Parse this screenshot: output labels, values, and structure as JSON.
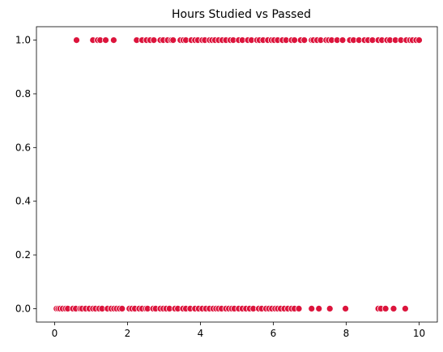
{
  "chart_data": {
    "type": "scatter",
    "title": "Hours Studied vs Passed",
    "xlabel": "",
    "ylabel": "",
    "xlim": [
      -0.5,
      10.5
    ],
    "ylim": [
      -0.05,
      1.05
    ],
    "x_ticks": [
      0,
      2,
      4,
      6,
      8,
      10
    ],
    "x_tick_labels": [
      "0",
      "2",
      "4",
      "6",
      "8",
      "10"
    ],
    "y_ticks": [
      0.0,
      0.2,
      0.4,
      0.6,
      0.8,
      1.0
    ],
    "y_tick_labels": [
      "0.0",
      "0.2",
      "0.4",
      "0.6",
      "0.8",
      "1.0"
    ],
    "grid": false,
    "color": "#dc143c",
    "points": [
      {
        "x": 0.05,
        "y": 0
      },
      {
        "x": 0.1,
        "y": 0
      },
      {
        "x": 0.15,
        "y": 0
      },
      {
        "x": 0.22,
        "y": 0
      },
      {
        "x": 0.3,
        "y": 0
      },
      {
        "x": 0.36,
        "y": 0
      },
      {
        "x": 0.5,
        "y": 0
      },
      {
        "x": 0.58,
        "y": 0
      },
      {
        "x": 0.7,
        "y": 0
      },
      {
        "x": 0.75,
        "y": 0
      },
      {
        "x": 0.85,
        "y": 0
      },
      {
        "x": 0.95,
        "y": 0
      },
      {
        "x": 1.05,
        "y": 0
      },
      {
        "x": 1.12,
        "y": 0
      },
      {
        "x": 1.22,
        "y": 0
      },
      {
        "x": 1.3,
        "y": 0
      },
      {
        "x": 1.45,
        "y": 0
      },
      {
        "x": 1.55,
        "y": 0
      },
      {
        "x": 1.63,
        "y": 0
      },
      {
        "x": 1.7,
        "y": 0
      },
      {
        "x": 1.78,
        "y": 0
      },
      {
        "x": 1.85,
        "y": 0
      },
      {
        "x": 2.05,
        "y": 0
      },
      {
        "x": 2.12,
        "y": 0
      },
      {
        "x": 2.2,
        "y": 0
      },
      {
        "x": 2.32,
        "y": 0
      },
      {
        "x": 2.4,
        "y": 0
      },
      {
        "x": 2.5,
        "y": 0
      },
      {
        "x": 2.55,
        "y": 0
      },
      {
        "x": 2.7,
        "y": 0
      },
      {
        "x": 2.77,
        "y": 0
      },
      {
        "x": 2.9,
        "y": 0
      },
      {
        "x": 2.98,
        "y": 0
      },
      {
        "x": 3.06,
        "y": 0
      },
      {
        "x": 3.15,
        "y": 0
      },
      {
        "x": 3.3,
        "y": 0
      },
      {
        "x": 3.38,
        "y": 0
      },
      {
        "x": 3.52,
        "y": 0
      },
      {
        "x": 3.6,
        "y": 0
      },
      {
        "x": 3.72,
        "y": 0
      },
      {
        "x": 3.85,
        "y": 0
      },
      {
        "x": 3.95,
        "y": 0
      },
      {
        "x": 4.05,
        "y": 0
      },
      {
        "x": 4.15,
        "y": 0
      },
      {
        "x": 4.25,
        "y": 0
      },
      {
        "x": 4.35,
        "y": 0
      },
      {
        "x": 4.43,
        "y": 0
      },
      {
        "x": 4.5,
        "y": 0
      },
      {
        "x": 4.58,
        "y": 0
      },
      {
        "x": 4.7,
        "y": 0
      },
      {
        "x": 4.78,
        "y": 0
      },
      {
        "x": 4.86,
        "y": 0
      },
      {
        "x": 4.93,
        "y": 0
      },
      {
        "x": 5.05,
        "y": 0
      },
      {
        "x": 5.15,
        "y": 0
      },
      {
        "x": 5.25,
        "y": 0
      },
      {
        "x": 5.35,
        "y": 0
      },
      {
        "x": 5.45,
        "y": 0
      },
      {
        "x": 5.6,
        "y": 0
      },
      {
        "x": 5.68,
        "y": 0
      },
      {
        "x": 5.8,
        "y": 0
      },
      {
        "x": 5.88,
        "y": 0
      },
      {
        "x": 5.96,
        "y": 0
      },
      {
        "x": 6.05,
        "y": 0
      },
      {
        "x": 6.12,
        "y": 0
      },
      {
        "x": 6.2,
        "y": 0
      },
      {
        "x": 6.3,
        "y": 0
      },
      {
        "x": 6.4,
        "y": 0
      },
      {
        "x": 6.5,
        "y": 0
      },
      {
        "x": 6.58,
        "y": 0
      },
      {
        "x": 6.7,
        "y": 0
      },
      {
        "x": 7.05,
        "y": 0
      },
      {
        "x": 7.25,
        "y": 0
      },
      {
        "x": 7.55,
        "y": 0
      },
      {
        "x": 7.98,
        "y": 0
      },
      {
        "x": 8.88,
        "y": 0
      },
      {
        "x": 8.95,
        "y": 0
      },
      {
        "x": 9.08,
        "y": 0
      },
      {
        "x": 9.3,
        "y": 0
      },
      {
        "x": 9.62,
        "y": 0
      },
      {
        "x": 0.6,
        "y": 1
      },
      {
        "x": 1.05,
        "y": 1
      },
      {
        "x": 1.18,
        "y": 1
      },
      {
        "x": 1.25,
        "y": 1
      },
      {
        "x": 1.4,
        "y": 1
      },
      {
        "x": 1.62,
        "y": 1
      },
      {
        "x": 2.25,
        "y": 1
      },
      {
        "x": 2.4,
        "y": 1
      },
      {
        "x": 2.52,
        "y": 1
      },
      {
        "x": 2.62,
        "y": 1
      },
      {
        "x": 2.72,
        "y": 1
      },
      {
        "x": 2.9,
        "y": 1
      },
      {
        "x": 2.98,
        "y": 1
      },
      {
        "x": 3.1,
        "y": 1
      },
      {
        "x": 3.2,
        "y": 1
      },
      {
        "x": 3.25,
        "y": 1
      },
      {
        "x": 3.45,
        "y": 1
      },
      {
        "x": 3.53,
        "y": 1
      },
      {
        "x": 3.6,
        "y": 1
      },
      {
        "x": 3.75,
        "y": 1
      },
      {
        "x": 3.85,
        "y": 1
      },
      {
        "x": 3.93,
        "y": 1
      },
      {
        "x": 4.05,
        "y": 1
      },
      {
        "x": 4.12,
        "y": 1
      },
      {
        "x": 4.25,
        "y": 1
      },
      {
        "x": 4.32,
        "y": 1
      },
      {
        "x": 4.4,
        "y": 1
      },
      {
        "x": 4.5,
        "y": 1
      },
      {
        "x": 4.6,
        "y": 1
      },
      {
        "x": 4.7,
        "y": 1
      },
      {
        "x": 4.82,
        "y": 1
      },
      {
        "x": 4.9,
        "y": 1
      },
      {
        "x": 5.05,
        "y": 1
      },
      {
        "x": 5.15,
        "y": 1
      },
      {
        "x": 5.3,
        "y": 1
      },
      {
        "x": 5.4,
        "y": 1
      },
      {
        "x": 5.55,
        "y": 1
      },
      {
        "x": 5.62,
        "y": 1
      },
      {
        "x": 5.72,
        "y": 1
      },
      {
        "x": 5.85,
        "y": 1
      },
      {
        "x": 5.95,
        "y": 1
      },
      {
        "x": 6.02,
        "y": 1
      },
      {
        "x": 6.12,
        "y": 1
      },
      {
        "x": 6.25,
        "y": 1
      },
      {
        "x": 6.35,
        "y": 1
      },
      {
        "x": 6.5,
        "y": 1
      },
      {
        "x": 6.58,
        "y": 1
      },
      {
        "x": 6.75,
        "y": 1
      },
      {
        "x": 6.85,
        "y": 1
      },
      {
        "x": 7.05,
        "y": 1
      },
      {
        "x": 7.1,
        "y": 1
      },
      {
        "x": 7.2,
        "y": 1
      },
      {
        "x": 7.3,
        "y": 1
      },
      {
        "x": 7.45,
        "y": 1
      },
      {
        "x": 7.52,
        "y": 1
      },
      {
        "x": 7.6,
        "y": 1
      },
      {
        "x": 7.75,
        "y": 1
      },
      {
        "x": 7.9,
        "y": 1
      },
      {
        "x": 8.1,
        "y": 1
      },
      {
        "x": 8.2,
        "y": 1
      },
      {
        "x": 8.35,
        "y": 1
      },
      {
        "x": 8.5,
        "y": 1
      },
      {
        "x": 8.6,
        "y": 1
      },
      {
        "x": 8.72,
        "y": 1
      },
      {
        "x": 8.88,
        "y": 1
      },
      {
        "x": 8.98,
        "y": 1
      },
      {
        "x": 9.12,
        "y": 1
      },
      {
        "x": 9.2,
        "y": 1
      },
      {
        "x": 9.35,
        "y": 1
      },
      {
        "x": 9.5,
        "y": 1
      },
      {
        "x": 9.65,
        "y": 1
      },
      {
        "x": 9.75,
        "y": 1
      },
      {
        "x": 9.82,
        "y": 1
      },
      {
        "x": 9.92,
        "y": 1
      },
      {
        "x": 10.0,
        "y": 1
      }
    ]
  }
}
